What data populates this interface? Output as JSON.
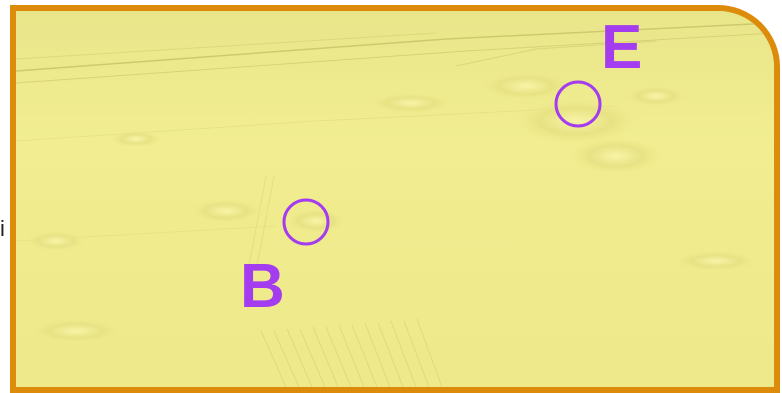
{
  "side_label": "i",
  "markers": [
    {
      "label": "E"
    },
    {
      "label": "B"
    }
  ],
  "colors": {
    "frame": "#dd8b0b",
    "terrain": "#eeea88",
    "marker": "#a43cf0"
  }
}
